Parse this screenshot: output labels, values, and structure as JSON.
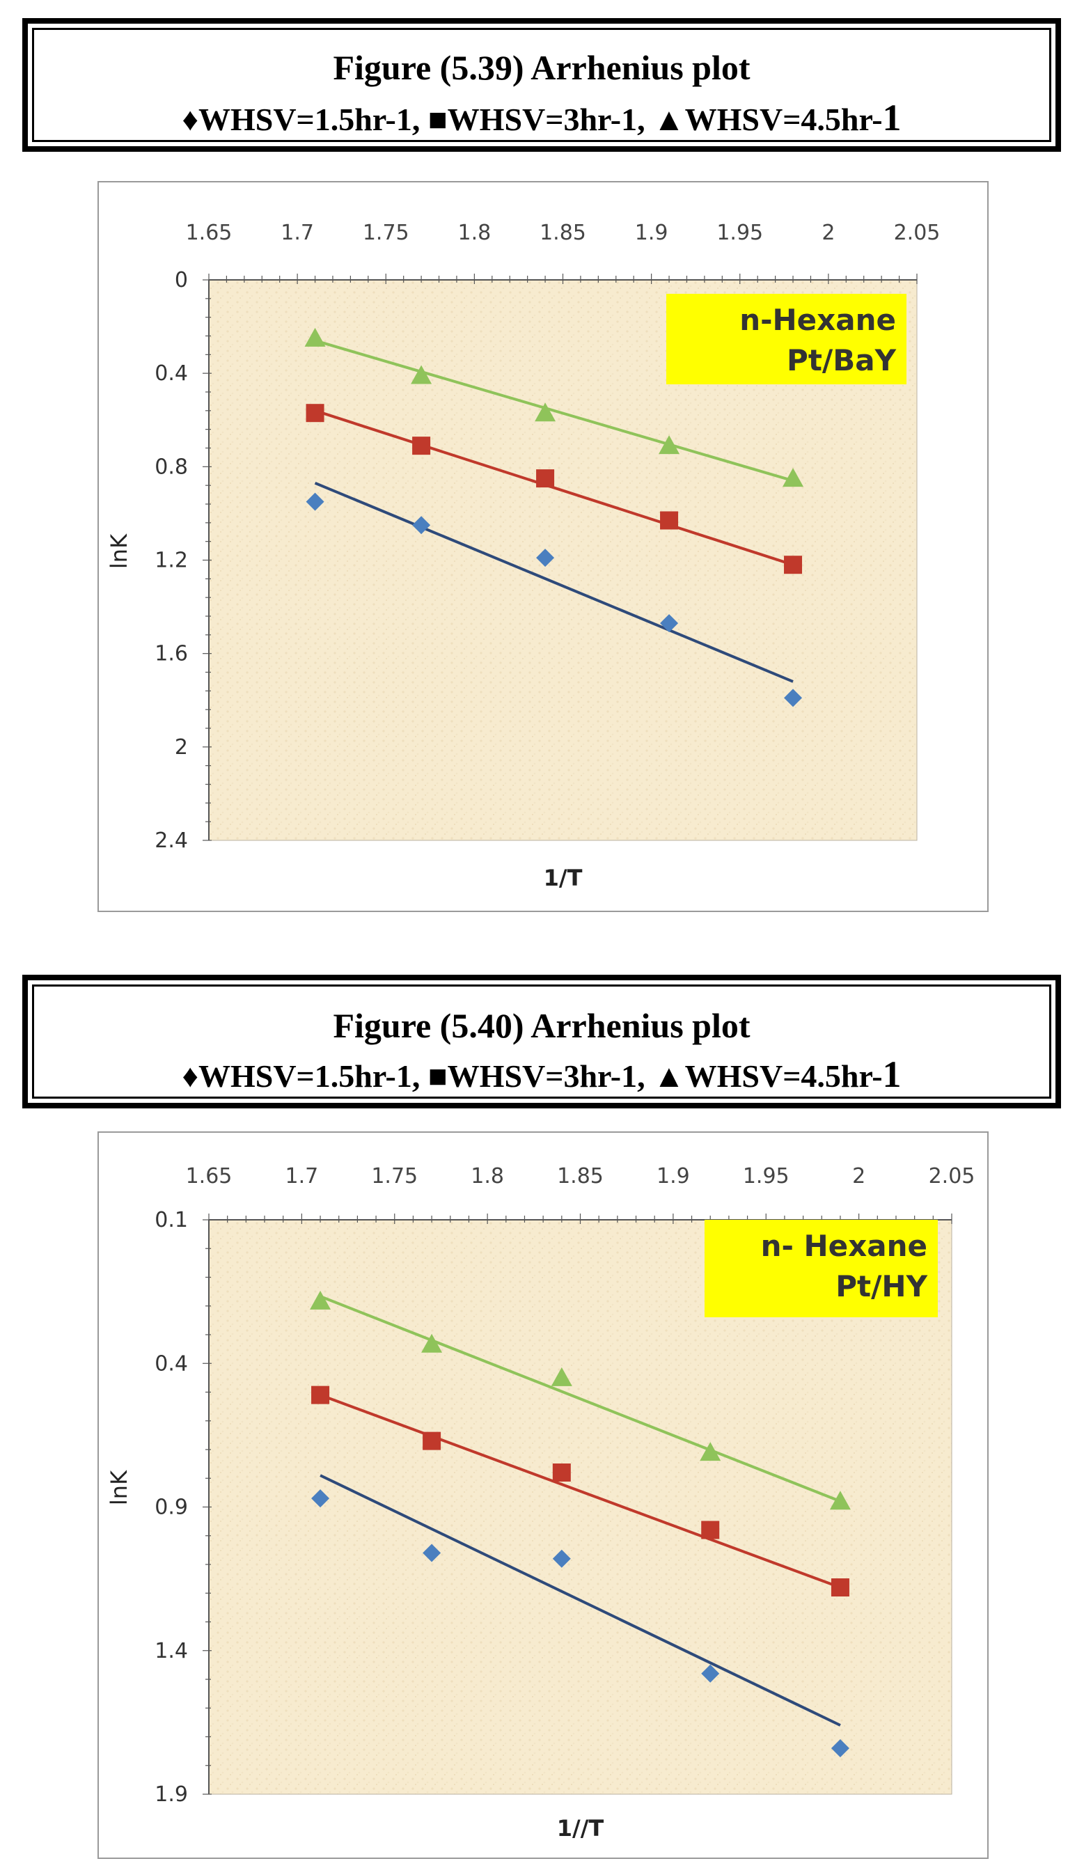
{
  "figures": [
    {
      "caption": {
        "title": "Figure (5.39) Arrhenius plot",
        "legend": [
          {
            "symbol": "♦",
            "label": "WHSV=1.5hr-1,"
          },
          {
            "symbol": "■",
            "label": "WHSV=3hr-1,"
          },
          {
            "symbol": "▲",
            "label": "WHSV=4.5hr-",
            "suffix": "1"
          }
        ]
      },
      "annotation": [
        "n-Hexane",
        "Pt/BaY"
      ]
    },
    {
      "caption": {
        "title": "Figure (5.40) Arrhenius plot",
        "legend": [
          {
            "symbol": "♦",
            "label": "WHSV=1.5hr-1,"
          },
          {
            "symbol": "■",
            "label": "WHSV=3hr-1,"
          },
          {
            "symbol": "▲",
            "label": "WHSV=4.5hr-",
            "suffix": "1"
          }
        ]
      },
      "annotation": [
        "n- Hexane",
        "Pt/HY"
      ]
    }
  ],
  "chart_data": [
    {
      "type": "scatter",
      "title": "",
      "xlabel": "1/T",
      "ylabel": "lnK",
      "xlim": [
        1.65,
        2.05
      ],
      "ylim": [
        0,
        2.4
      ],
      "y_reversed": true,
      "x_ticks": [
        "1.65",
        "1.7",
        "1.75",
        "1.8",
        "1.85",
        "1.9",
        "1.95",
        "2",
        "2.05"
      ],
      "x_tick_values": [
        1.65,
        1.7,
        1.75,
        1.8,
        1.85,
        1.9,
        1.95,
        2.0,
        2.05
      ],
      "y_ticks": [
        "0",
        "0.4",
        "0.8",
        "1.2",
        "1.6",
        "2",
        "2.4"
      ],
      "y_tick_values": [
        0,
        0.4,
        0.8,
        1.2,
        1.6,
        2.0,
        2.4
      ],
      "x_axis_position": "top",
      "grid": false,
      "series": [
        {
          "name": "WHSV=1.5hr-1",
          "marker": "diamond",
          "color": "#4a7fbf",
          "line_color": "#2e4a7a",
          "x": [
            1.71,
            1.77,
            1.84,
            1.91,
            1.98
          ],
          "y": [
            0.95,
            1.05,
            1.19,
            1.47,
            1.79
          ],
          "fit": [
            [
              1.71,
              0.87
            ],
            [
              1.98,
              1.72
            ]
          ]
        },
        {
          "name": "WHSV=3hr-1",
          "marker": "square",
          "color": "#c0392b",
          "line_color": "#c0392b",
          "x": [
            1.71,
            1.77,
            1.84,
            1.91,
            1.98
          ],
          "y": [
            0.57,
            0.71,
            0.85,
            1.03,
            1.22
          ],
          "fit": [
            [
              1.71,
              0.56
            ],
            [
              1.98,
              1.22
            ]
          ]
        },
        {
          "name": "WHSV=4.5hr-1",
          "marker": "triangle",
          "color": "#8fc35a",
          "line_color": "#8fc35a",
          "x": [
            1.71,
            1.77,
            1.84,
            1.91,
            1.98
          ],
          "y": [
            0.25,
            0.41,
            0.57,
            0.71,
            0.85
          ],
          "fit": [
            [
              1.71,
              0.26
            ],
            [
              1.98,
              0.86
            ]
          ]
        }
      ]
    },
    {
      "type": "scatter",
      "title": "",
      "xlabel": "1//T",
      "ylabel": "lnK",
      "xlim": [
        1.65,
        2.05
      ],
      "ylim": [
        0.1,
        1.9
      ],
      "y_reversed": true,
      "x_ticks": [
        "1.65",
        "1.7",
        "1.75",
        "1.8",
        "1.85",
        "1.9",
        "1.95",
        "2",
        "2.05"
      ],
      "x_tick_values": [
        1.65,
        1.7,
        1.75,
        1.8,
        1.85,
        1.9,
        1.95,
        2.0,
        2.05
      ],
      "y_ticks": [
        "0.1",
        "0.4",
        "0.9",
        "1.4",
        "1.9"
      ],
      "y_tick_values": [
        0.1,
        0.4,
        0.9,
        1.4,
        1.9
      ],
      "x_axis_position": "top",
      "grid": false,
      "series": [
        {
          "name": "WHSV=1.5hr-1",
          "marker": "diamond",
          "color": "#4a7fbf",
          "line_color": "#2e4a7a",
          "x": [
            1.71,
            1.77,
            1.84,
            1.92,
            1.99
          ],
          "y": [
            0.87,
            1.06,
            1.08,
            1.48,
            1.74
          ],
          "fit": [
            [
              1.71,
              0.79
            ],
            [
              1.99,
              1.66
            ]
          ]
        },
        {
          "name": "WHSV=3hr-1",
          "marker": "square",
          "color": "#c0392b",
          "line_color": "#c0392b",
          "x": [
            1.71,
            1.77,
            1.84,
            1.92,
            1.99
          ],
          "y": [
            0.51,
            0.67,
            0.78,
            0.98,
            1.18
          ],
          "fit": [
            [
              1.71,
              0.51
            ],
            [
              1.99,
              1.18
            ]
          ]
        },
        {
          "name": "WHSV=4.5hr-1",
          "marker": "triangle",
          "color": "#8fc35a",
          "line_color": "#8fc35a",
          "x": [
            1.71,
            1.77,
            1.84,
            1.92,
            1.99
          ],
          "y": [
            0.27,
            0.36,
            0.45,
            0.71,
            0.88
          ],
          "fit": [
            [
              1.71,
              0.26
            ],
            [
              1.99,
              0.88
            ]
          ]
        }
      ]
    }
  ]
}
